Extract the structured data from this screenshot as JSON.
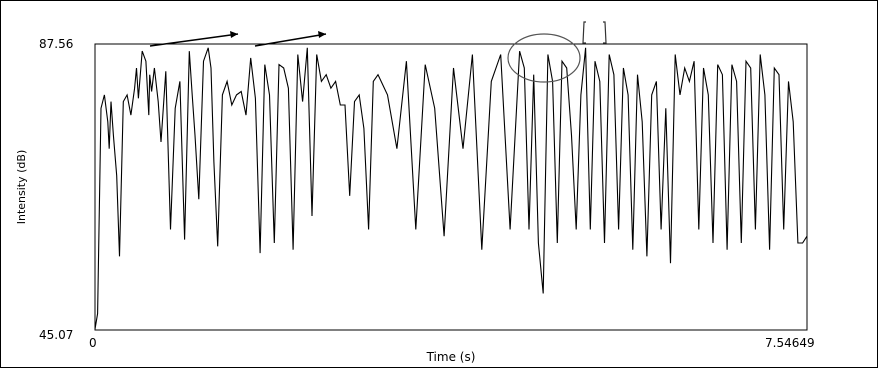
{
  "chart_data": {
    "type": "line",
    "xlabel": "Time (s)",
    "ylabel": "Intensity (dB)",
    "xlim": [
      0,
      7.54649
    ],
    "ylim": [
      45.07,
      87.56
    ],
    "x_tick_labels": [
      "0",
      "7.54649"
    ],
    "y_tick_labels": [
      "45.07",
      "87.56"
    ],
    "grid": false,
    "line_color": "#000000",
    "series": [
      {
        "x": [
          0.0,
          0.028,
          0.064,
          0.1,
          0.136,
          0.15,
          0.17,
          0.195,
          0.23,
          0.26,
          0.3,
          0.34,
          0.38,
          0.42,
          0.44,
          0.46,
          0.5,
          0.54,
          0.57,
          0.58,
          0.6,
          0.63,
          0.67,
          0.7,
          0.75,
          0.8,
          0.85,
          0.9,
          0.95,
          1.0,
          1.03,
          1.06,
          1.1,
          1.15,
          1.2,
          1.23,
          1.26,
          1.3,
          1.35,
          1.4,
          1.45,
          1.5,
          1.55,
          1.6,
          1.65,
          1.7,
          1.75,
          1.8,
          1.85,
          1.9,
          1.95,
          2.0,
          2.05,
          2.1,
          2.15,
          2.2,
          2.25,
          2.3,
          2.35,
          2.4,
          2.45,
          2.5,
          2.55,
          2.6,
          2.65,
          2.7,
          2.75,
          2.8,
          2.85,
          2.9,
          2.95,
          3.0,
          3.1,
          3.2,
          3.3,
          3.4,
          3.5,
          3.6,
          3.7,
          3.8,
          3.9,
          4.0,
          4.1,
          4.2,
          4.3,
          4.4,
          4.5,
          4.55,
          4.6,
          4.65,
          4.7,
          4.75,
          4.8,
          4.85,
          4.9,
          4.95,
          5.0,
          5.05,
          5.1,
          5.15,
          5.2,
          5.25,
          5.3,
          5.35,
          5.4,
          5.45,
          5.5,
          5.55,
          5.6,
          5.65,
          5.7,
          5.75,
          5.8,
          5.85,
          5.9,
          5.95,
          6.0,
          6.05,
          6.1,
          6.15,
          6.2,
          6.25,
          6.3,
          6.35,
          6.4,
          6.45,
          6.5,
          6.55,
          6.6,
          6.65,
          6.7,
          6.75,
          6.8,
          6.85,
          6.9,
          6.95,
          7.0,
          7.05,
          7.1,
          7.15,
          7.2,
          7.25,
          7.3,
          7.35,
          7.4,
          7.45,
          7.5,
          7.546
        ],
        "y": [
          45.2,
          47.5,
          78.0,
          80.0,
          76.0,
          72.0,
          79.0,
          74.0,
          68.0,
          56.0,
          79.0,
          80.0,
          77.0,
          81.0,
          84.0,
          79.5,
          86.5,
          85.0,
          77.0,
          83.0,
          80.5,
          84.0,
          79.0,
          73.0,
          83.5,
          60.0,
          78.0,
          82.0,
          58.5,
          86.5,
          80.0,
          74.0,
          64.5,
          85.0,
          87.0,
          84.0,
          70.0,
          57.5,
          80.0,
          82.0,
          78.5,
          80.0,
          80.5,
          77.0,
          85.5,
          79.5,
          56.5,
          84.5,
          80.0,
          58.0,
          84.5,
          84.0,
          81.0,
          57.0,
          86.0,
          79.0,
          87.0,
          62.0,
          86.0,
          82.0,
          83.0,
          81.0,
          82.0,
          78.5,
          78.5,
          65.0,
          79.0,
          80.0,
          75.0,
          60.0,
          82.0,
          83.0,
          80.0,
          72.0,
          85.0,
          60.0,
          84.5,
          78.0,
          59.0,
          84.0,
          72.0,
          86.0,
          57.0,
          82.0,
          86.0,
          60.0,
          86.5,
          84.0,
          60.0,
          83.0,
          58.0,
          50.5,
          86.0,
          82.0,
          58.0,
          85.0,
          84.0,
          74.0,
          60.0,
          80.0,
          87.0,
          60.0,
          85.0,
          82.0,
          58.0,
          86.0,
          83.0,
          60.0,
          84.0,
          80.0,
          57.0,
          83.0,
          76.0,
          56.0,
          80.0,
          82.0,
          60.0,
          78.0,
          55.0,
          86.0,
          80.0,
          84.0,
          82.0,
          85.0,
          60.0,
          84.0,
          80.0,
          58.0,
          84.5,
          83.0,
          57.0,
          84.5,
          82.0,
          58.0,
          85.0,
          84.0,
          60.0,
          86.0,
          80.0,
          57.0,
          84.0,
          83.0,
          60.0,
          82.0,
          76.0,
          58.0,
          58.0,
          59.0
        ]
      }
    ]
  }
}
